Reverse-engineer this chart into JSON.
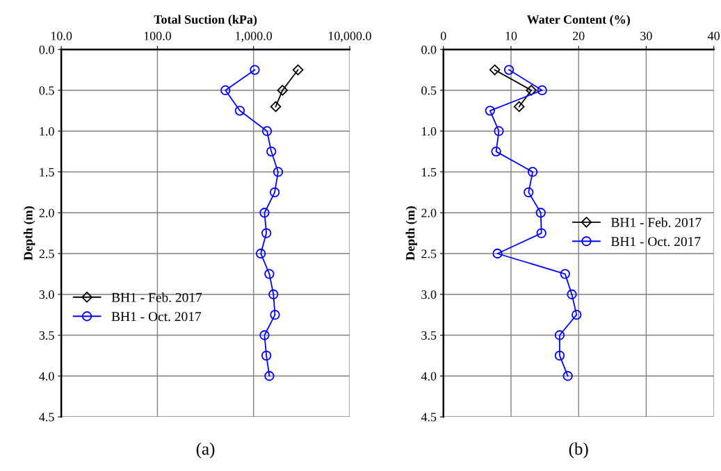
{
  "chart_data": [
    {
      "type": "line",
      "xlabel": "Total Suction (kPa)",
      "ylabel": "Depth (m)",
      "log": "x",
      "xlim": [
        10,
        10000
      ],
      "xticks": [
        {
          "value": 10,
          "label": "10.0"
        },
        {
          "value": 100,
          "label": "100.0"
        },
        {
          "value": 1000,
          "label": "1,000.0"
        },
        {
          "value": 10000,
          "label": "10,000.0"
        }
      ],
      "ylim": [
        4.5,
        0
      ],
      "yticks": [
        {
          "value": 0,
          "label": "0.0"
        },
        {
          "value": 0.5,
          "label": "0.5"
        },
        {
          "value": 1,
          "label": "1.0"
        },
        {
          "value": 1.5,
          "label": "1.5"
        },
        {
          "value": 2,
          "label": "2.0"
        },
        {
          "value": 2.5,
          "label": "2.5"
        },
        {
          "value": 3,
          "label": "3.0"
        },
        {
          "value": 3.5,
          "label": "3.5"
        },
        {
          "value": 4,
          "label": "4.0"
        },
        {
          "value": 4.5,
          "label": "4.5"
        }
      ],
      "grid": true,
      "legend": "lower left",
      "annotations": [
        "(a)"
      ],
      "series": [
        {
          "name": "BH1 - Feb. 2017",
          "color": "#000000",
          "marker": "diamond",
          "x": [
            2900,
            2000,
            1700
          ],
          "values": [
            0.25,
            0.5,
            0.7
          ]
        },
        {
          "name": "BH1 - Oct. 2017",
          "color": "#0000ff",
          "marker": "circle",
          "x": [
            1030,
            510,
            720,
            1380,
            1530,
            1800,
            1660,
            1300,
            1360,
            1190,
            1460,
            1610,
            1670,
            1300,
            1360,
            1460
          ],
          "values": [
            0.25,
            0.5,
            0.75,
            1.0,
            1.25,
            1.5,
            1.75,
            2.0,
            2.25,
            2.5,
            2.75,
            3.0,
            3.25,
            3.5,
            3.75,
            4.0
          ]
        }
      ]
    },
    {
      "type": "line",
      "xlabel": "Water Content (%)",
      "ylabel": "Depth (m)",
      "xlim": [
        0,
        40
      ],
      "xticks": [
        0,
        10,
        20,
        30,
        40
      ],
      "ylim": [
        4.5,
        0
      ],
      "yticks": [
        {
          "value": 0,
          "label": "0.0"
        },
        {
          "value": 0.5,
          "label": "0.5"
        },
        {
          "value": 1,
          "label": "1.0"
        },
        {
          "value": 1.5,
          "label": "1.5"
        },
        {
          "value": 2,
          "label": "2.0"
        },
        {
          "value": 2.5,
          "label": "2.5"
        },
        {
          "value": 3,
          "label": "3.0"
        },
        {
          "value": 3.5,
          "label": "3.5"
        },
        {
          "value": 4,
          "label": "4.0"
        },
        {
          "value": 4.5,
          "label": "4.5"
        }
      ],
      "grid": true,
      "legend": "center right",
      "annotations": [
        "(b)"
      ],
      "series": [
        {
          "name": "BH1 - Feb. 2017",
          "color": "#000000",
          "marker": "diamond",
          "x": [
            7.6,
            13.0,
            11.2
          ],
          "values": [
            0.25,
            0.5,
            0.7
          ]
        },
        {
          "name": "BH1 - Oct. 2017",
          "color": "#0000ff",
          "marker": "circle",
          "x": [
            9.7,
            14.6,
            6.9,
            8.2,
            7.8,
            13.2,
            12.6,
            14.4,
            14.5,
            8.0,
            18.0,
            19.0,
            19.7,
            17.2,
            17.2,
            18.4
          ],
          "values": [
            0.25,
            0.5,
            0.75,
            1.0,
            1.25,
            1.5,
            1.75,
            2.0,
            2.25,
            2.5,
            2.75,
            3.0,
            3.25,
            3.5,
            3.75,
            4.0
          ]
        }
      ]
    }
  ]
}
